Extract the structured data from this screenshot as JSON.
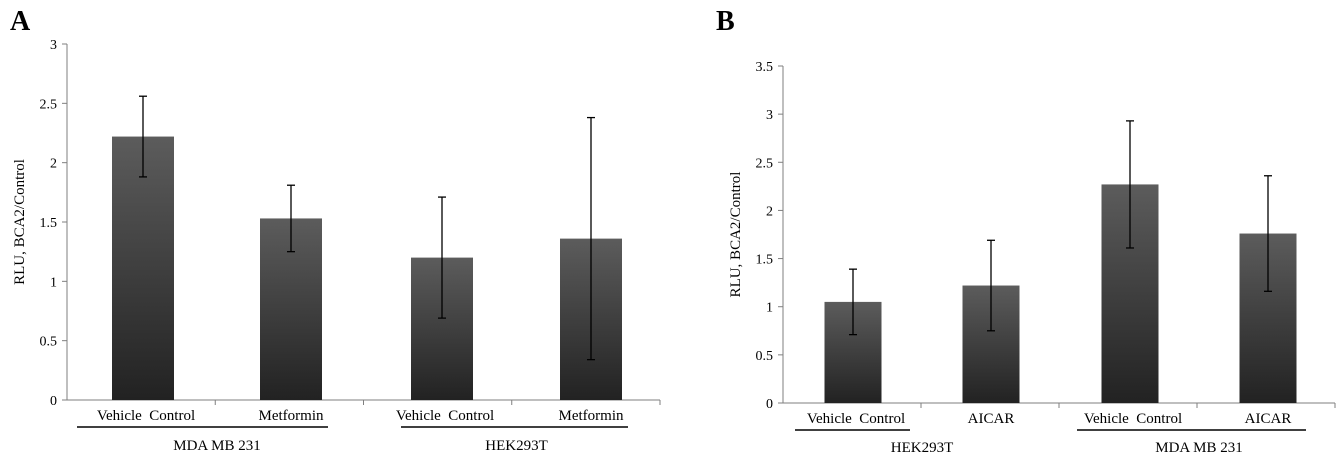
{
  "chart_data": [
    {
      "panel": "A",
      "type": "bar",
      "ylabel": "RLU, BCA2/Control",
      "ylim": [
        0,
        3
      ],
      "yticks": [
        "0",
        "0.5",
        "1",
        "1.5",
        "2",
        "2.5",
        "3"
      ],
      "grid": false,
      "bar_color": "#2b2b2b",
      "categories": [
        "Vehicle  Control",
        "Metformin",
        "Vehicle  Control",
        "Metformin"
      ],
      "values": [
        2.22,
        1.53,
        1.2,
        1.36
      ],
      "error": [
        0.34,
        0.28,
        0.51,
        1.02
      ],
      "groups": [
        {
          "label": "MDA MB 231",
          "members": [
            0,
            1
          ]
        },
        {
          "label": "HEK293T",
          "members": [
            2,
            3
          ]
        }
      ]
    },
    {
      "panel": "B",
      "type": "bar",
      "ylabel": "RLU, BCA2/Control",
      "ylim": [
        0,
        3.5
      ],
      "yticks": [
        "0",
        "0.5",
        "1",
        "1.5",
        "2",
        "2.5",
        "3",
        "3.5"
      ],
      "grid": false,
      "bar_color": "#2b2b2b",
      "categories": [
        "Vehicle  Control",
        "AICAR",
        "Vehicle  Control",
        "AICAR"
      ],
      "values": [
        1.05,
        1.22,
        2.27,
        1.76
      ],
      "error": [
        0.34,
        0.47,
        0.66,
        0.6
      ],
      "groups": [
        {
          "label": "HEK293T",
          "members": [
            0,
            1
          ]
        },
        {
          "label": "MDA MB 231",
          "members": [
            2,
            3
          ]
        }
      ]
    }
  ]
}
